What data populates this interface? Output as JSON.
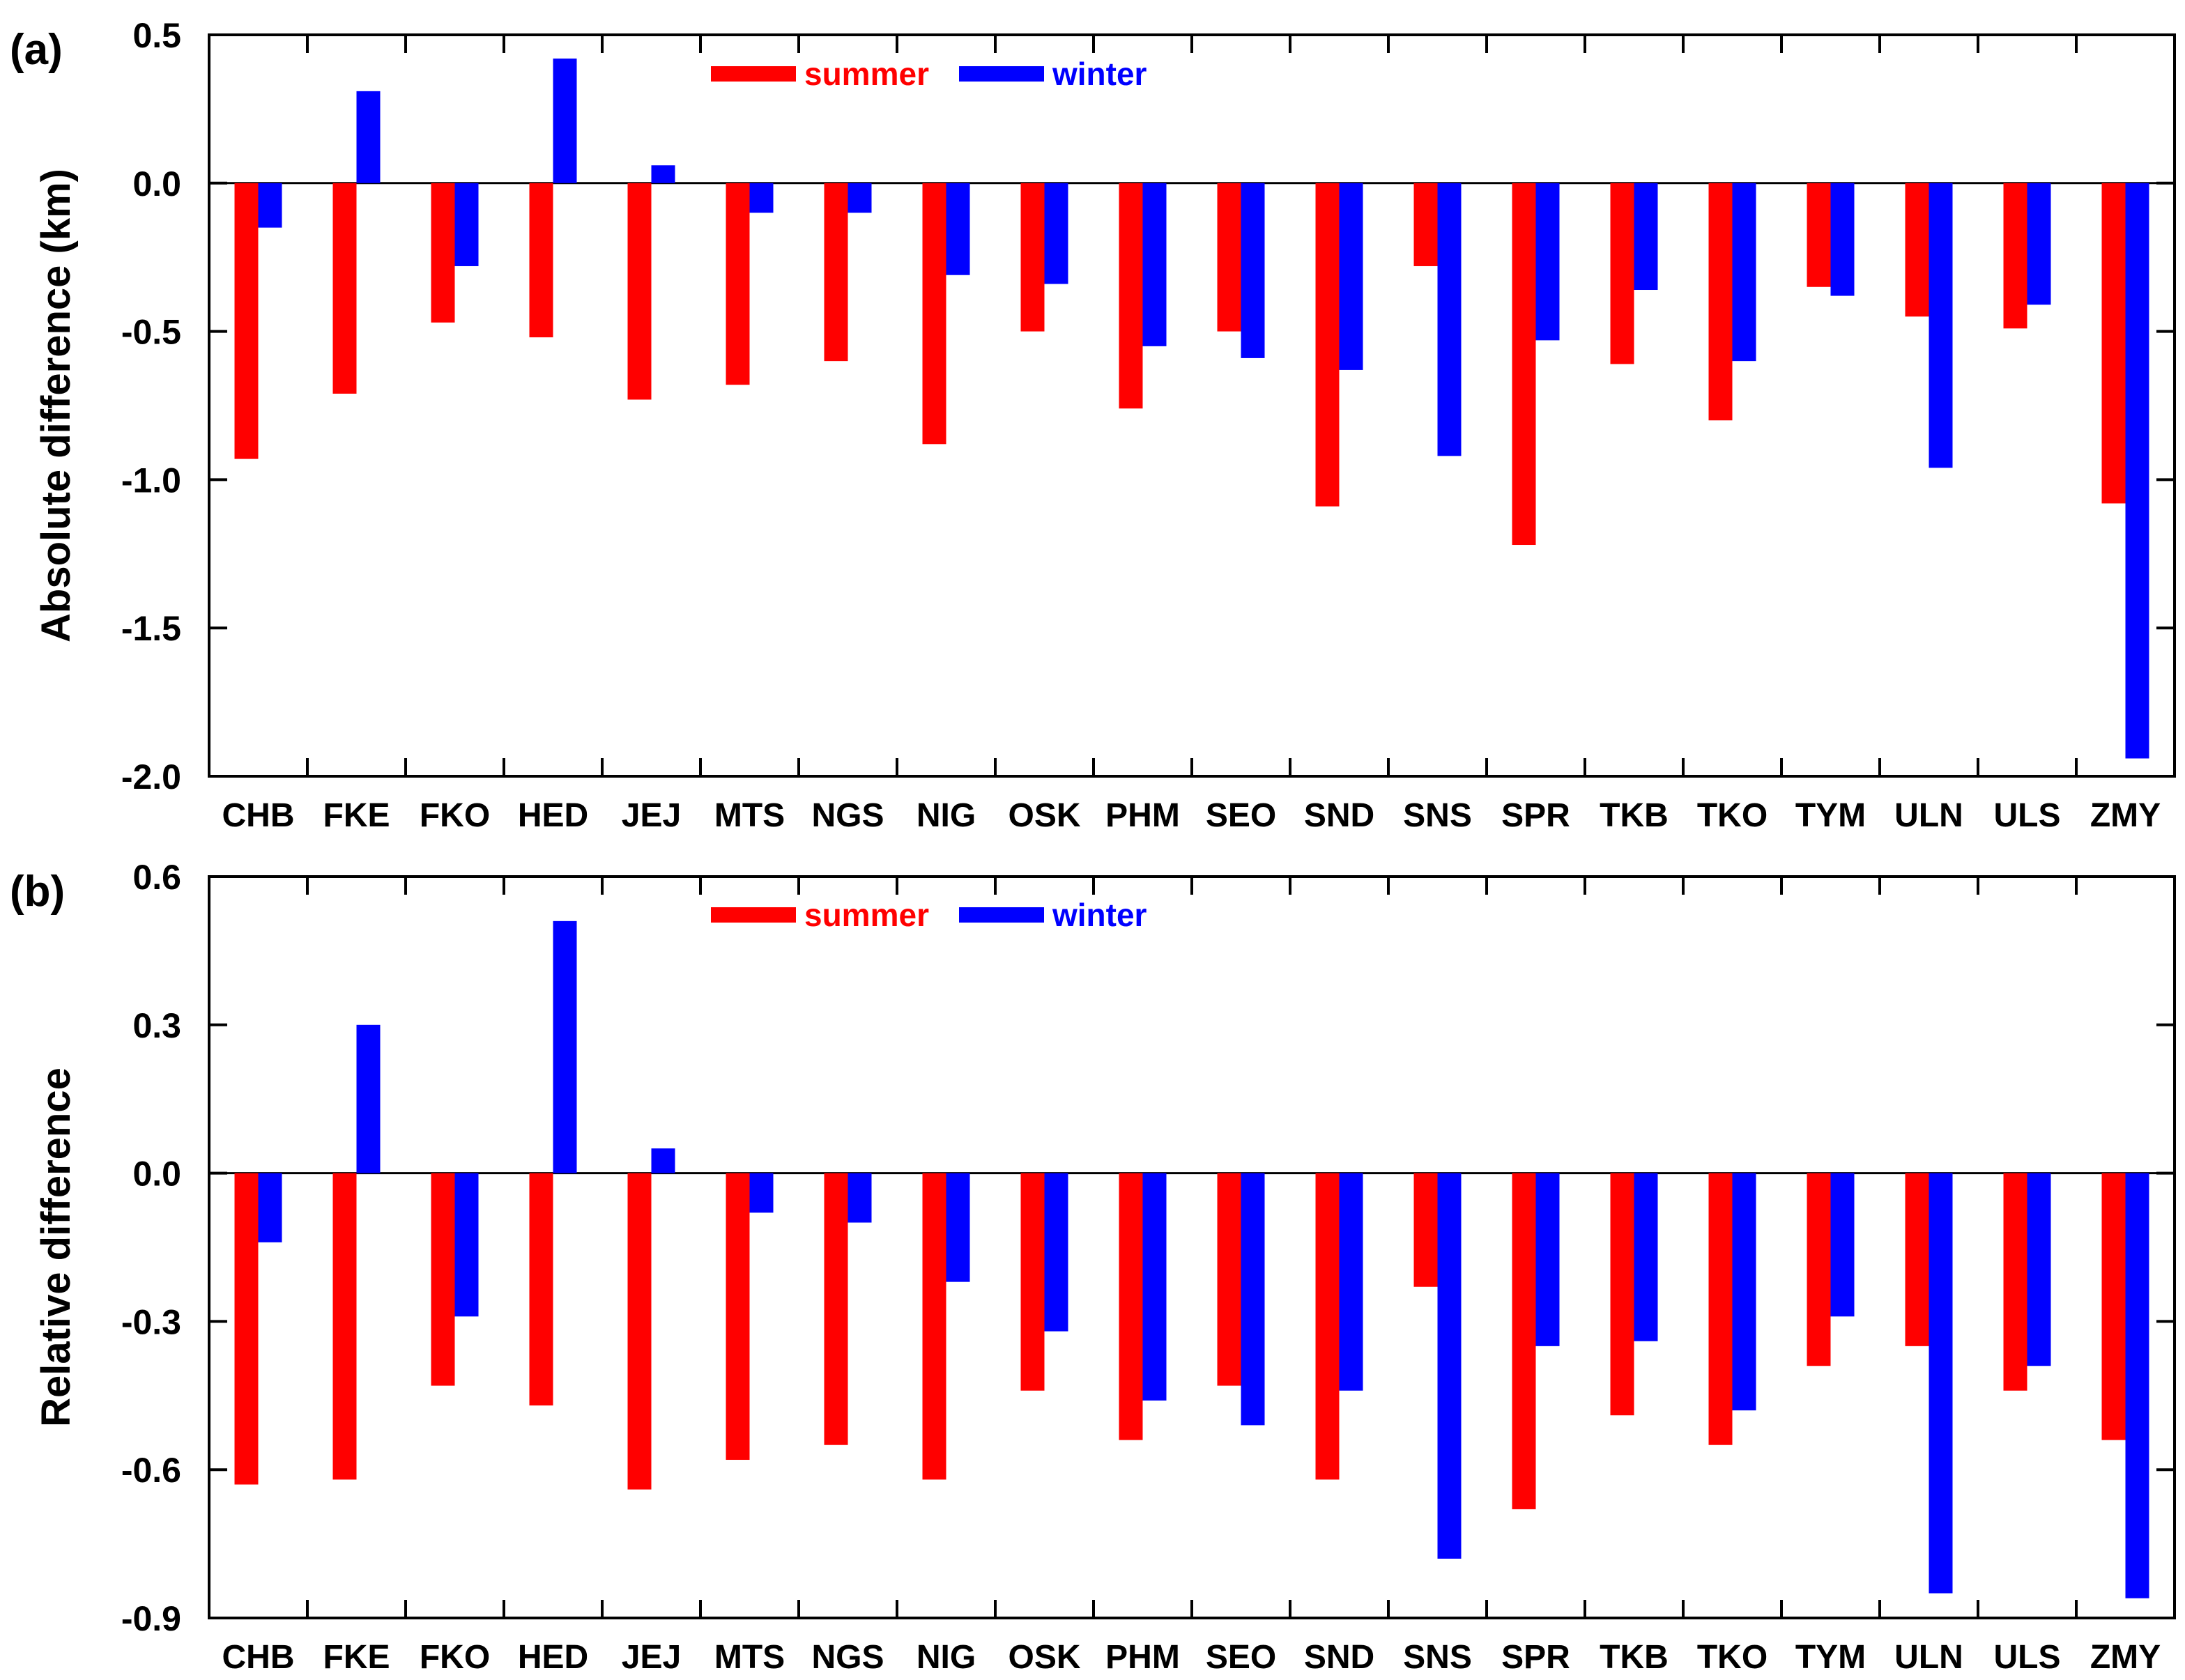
{
  "colors": {
    "summer": "#ff0000",
    "winter": "#0000ff",
    "axis": "#000000"
  },
  "chart_data": [
    {
      "type": "bar",
      "panel_label": "(a)",
      "ylabel": "Absolute difference (km)",
      "ylim": [
        -2.0,
        0.5
      ],
      "yticks": [
        0.5,
        0.0,
        -0.5,
        -1.0,
        -1.5,
        -2.0
      ],
      "ytick_labels": [
        "0.5",
        "0.0",
        "-0.5",
        "-1.0",
        "-1.5",
        "-2.0"
      ],
      "categories": [
        "CHB",
        "FKE",
        "FKO",
        "HED",
        "JEJ",
        "MTS",
        "NGS",
        "NIG",
        "OSK",
        "PHM",
        "SEO",
        "SND",
        "SNS",
        "SPR",
        "TKB",
        "TKO",
        "TYM",
        "ULN",
        "ULS",
        "ZMY"
      ],
      "legend": {
        "position": "top-center",
        "entries": [
          "summer",
          "winter"
        ]
      },
      "series": [
        {
          "name": "summer",
          "values": [
            -0.93,
            -0.71,
            -0.47,
            -0.52,
            -0.73,
            -0.68,
            -0.6,
            -0.88,
            -0.5,
            -0.76,
            -0.5,
            -1.09,
            -0.28,
            -1.22,
            -0.61,
            -0.8,
            -0.35,
            -0.45,
            -0.49,
            -1.08
          ]
        },
        {
          "name": "winter",
          "values": [
            -0.15,
            0.31,
            -0.28,
            0.42,
            0.06,
            -0.1,
            -0.1,
            -0.31,
            -0.34,
            -0.55,
            -0.59,
            -0.63,
            -0.92,
            -0.53,
            -0.36,
            -0.6,
            -0.38,
            -0.96,
            -0.41,
            -1.94
          ]
        }
      ]
    },
    {
      "type": "bar",
      "panel_label": "(b)",
      "ylabel": "Relative difference",
      "ylim": [
        -0.9,
        0.6
      ],
      "yticks": [
        0.6,
        0.3,
        0.0,
        -0.3,
        -0.6,
        -0.9
      ],
      "ytick_labels": [
        "0.6",
        "0.3",
        "0.0",
        "-0.3",
        "-0.6",
        "-0.9"
      ],
      "categories": [
        "CHB",
        "FKE",
        "FKO",
        "HED",
        "JEJ",
        "MTS",
        "NGS",
        "NIG",
        "OSK",
        "PHM",
        "SEO",
        "SND",
        "SNS",
        "SPR",
        "TKB",
        "TKO",
        "TYM",
        "ULN",
        "ULS",
        "ZMY"
      ],
      "legend": {
        "position": "top-center",
        "entries": [
          "summer",
          "winter"
        ]
      },
      "series": [
        {
          "name": "summer",
          "values": [
            -0.63,
            -0.62,
            -0.43,
            -0.47,
            -0.64,
            -0.58,
            -0.55,
            -0.62,
            -0.44,
            -0.54,
            -0.43,
            -0.62,
            -0.23,
            -0.68,
            -0.49,
            -0.55,
            -0.39,
            -0.35,
            -0.44,
            -0.54
          ]
        },
        {
          "name": "winter",
          "values": [
            -0.14,
            0.3,
            -0.29,
            0.51,
            0.05,
            -0.08,
            -0.1,
            -0.22,
            -0.32,
            -0.46,
            -0.51,
            -0.44,
            -0.78,
            -0.35,
            -0.34,
            -0.48,
            -0.29,
            -0.85,
            -0.39,
            -0.86
          ]
        }
      ]
    }
  ]
}
